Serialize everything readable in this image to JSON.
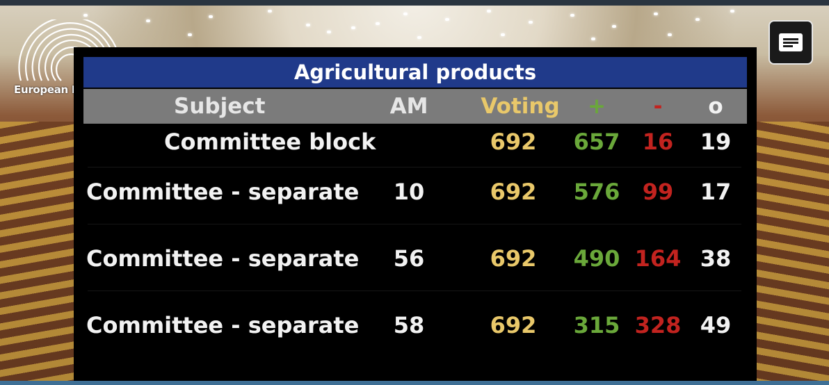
{
  "logo": {
    "text": "European Parliament"
  },
  "board": {
    "title": "Agricultural products",
    "headers": {
      "subject": "Subject",
      "am": "AM",
      "voting": "Voting",
      "plus": "+",
      "minus": "-",
      "abstain": "o"
    },
    "rows": [
      {
        "subject": "Committee block",
        "am": "",
        "voting": "692",
        "plus": "657",
        "minus": "16",
        "abstain": "19"
      },
      {
        "subject": "Committee - separate",
        "am": "10",
        "voting": "692",
        "plus": "576",
        "minus": "99",
        "abstain": "17"
      },
      {
        "subject": "Committee - separate",
        "am": "56",
        "voting": "692",
        "plus": "490",
        "minus": "164",
        "abstain": "38"
      },
      {
        "subject": "Committee - separate",
        "am": "58",
        "voting": "692",
        "plus": "315",
        "minus": "328",
        "abstain": "49"
      }
    ]
  },
  "colors": {
    "title_bar": "#203a8a",
    "header_bar": "#7b7b7b",
    "voting": "#e9c86a",
    "in_favour": "#6aa83a",
    "against": "#c2231f",
    "abstain": "#f2f2f2"
  },
  "controls": {
    "subtitles_icon": "subtitles-icon"
  }
}
